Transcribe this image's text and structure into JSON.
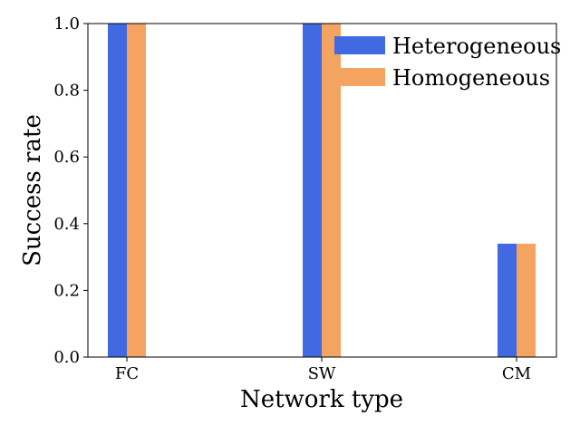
{
  "chart_data": {
    "type": "bar",
    "title": "",
    "xlabel": "Network type",
    "ylabel": "Success rate",
    "categories": [
      "FC",
      "SW",
      "CM"
    ],
    "series": [
      {
        "name": "Heterogeneous",
        "values": [
          1.0,
          1.0,
          0.34
        ]
      },
      {
        "name": "Homogeneous",
        "values": [
          1.0,
          1.0,
          0.34
        ]
      }
    ],
    "ylim": [
      0,
      1.0
    ],
    "yticks": [
      0.0,
      0.2,
      0.4,
      0.6,
      0.8,
      1.0
    ],
    "ytick_labels": [
      "0.0",
      "0.2",
      "0.4",
      "0.6",
      "0.8",
      "1.0"
    ],
    "grid": false,
    "legend_position": "top-right",
    "colors": {
      "Heterogeneous": "#4169E1",
      "Homogeneous": "#F4A460"
    }
  }
}
